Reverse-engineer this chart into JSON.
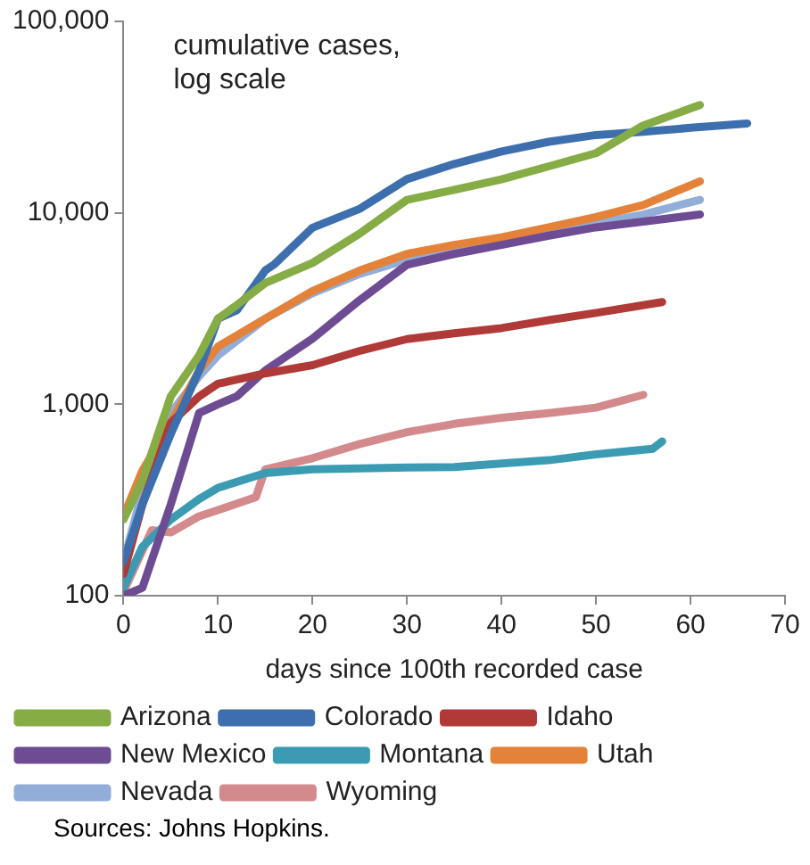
{
  "chart_data": {
    "type": "line",
    "title": "cumulative cases, log scale",
    "xlabel": "days since 100th recorded case",
    "log": "y",
    "grid": false,
    "legend": "bottom",
    "marker": "none",
    "line_style": "solid",
    "xlim": [
      0,
      70
    ],
    "xticks": [
      0,
      10,
      20,
      30,
      40,
      50,
      60,
      70
    ],
    "ylim": [
      100,
      100000
    ],
    "yticks": [
      {
        "value": 100,
        "label": "100"
      },
      {
        "value": 1000,
        "label": "1,000"
      },
      {
        "value": 10000,
        "label": "10,000"
      },
      {
        "value": 100000,
        "label": "100,000"
      }
    ],
    "annotations": [
      "Sources: Johns Hopkins."
    ],
    "series": [
      {
        "name": "Arizona",
        "color": "#86ac45",
        "x": [
          0,
          2,
          5,
          8,
          10,
          12,
          15,
          20,
          25,
          30,
          35,
          40,
          45,
          50,
          55,
          61
        ],
        "values": [
          250,
          400,
          1100,
          1800,
          2800,
          3300,
          4300,
          5470,
          7800,
          11700,
          13200,
          14960,
          17500,
          20500,
          28600,
          36600
        ]
      },
      {
        "name": "Colorado",
        "color": "#3d6fae",
        "x": [
          0,
          2,
          5,
          8,
          10,
          12,
          15,
          16,
          20,
          25,
          30,
          35,
          40,
          45,
          50,
          55,
          60,
          66
        ],
        "values": [
          150,
          300,
          700,
          1500,
          2800,
          3100,
          5000,
          5400,
          8360,
          10500,
          15000,
          18000,
          20900,
          23500,
          25500,
          26500,
          27800,
          29300
        ]
      },
      {
        "name": "Idaho",
        "color": "#b03a37",
        "x": [
          0,
          2,
          5,
          8,
          10,
          15,
          20,
          25,
          30,
          35,
          40,
          45,
          50,
          57
        ],
        "values": [
          130,
          300,
          800,
          1100,
          1280,
          1450,
          1600,
          1900,
          2190,
          2350,
          2500,
          2750,
          3000,
          3420
        ]
      },
      {
        "name": "New Mexico",
        "color": "#6e4c93",
        "x": [
          0,
          2,
          5,
          8,
          10,
          12,
          15,
          20,
          25,
          30,
          35,
          40,
          45,
          50,
          55,
          61
        ],
        "values": [
          100,
          110,
          300,
          900,
          1000,
          1100,
          1500,
          2200,
          3500,
          5350,
          6100,
          6800,
          7600,
          8400,
          9000,
          9800
        ]
      },
      {
        "name": "Montana",
        "color": "#3a9bb3",
        "x": [
          0,
          2,
          5,
          8,
          10,
          15,
          20,
          25,
          30,
          35,
          40,
          45,
          50,
          56,
          57
        ],
        "values": [
          110,
          180,
          250,
          320,
          366,
          437,
          457,
          462,
          467,
          470,
          490,
          510,
          547,
          585,
          640
        ]
      },
      {
        "name": "Utah",
        "color": "#e4823a",
        "x": [
          0,
          2,
          5,
          8,
          10,
          15,
          20,
          25,
          30,
          35,
          40,
          45,
          50,
          55,
          61
        ],
        "values": [
          260,
          450,
          800,
          1500,
          2000,
          2800,
          3900,
          5000,
          6100,
          6800,
          7450,
          8400,
          9500,
          11000,
          14600
        ]
      },
      {
        "name": "Nevada",
        "color": "#92add8",
        "x": [
          0,
          2,
          5,
          8,
          10,
          15,
          20,
          25,
          30,
          35,
          40,
          45,
          50,
          55,
          61
        ],
        "values": [
          150,
          350,
          900,
          1400,
          1800,
          2800,
          3800,
          4800,
          5700,
          6300,
          7000,
          7900,
          8800,
          9800,
          11700
        ]
      },
      {
        "name": "Wyoming",
        "color": "#d48a8c",
        "x": [
          0,
          3,
          5,
          8,
          10,
          14,
          15,
          20,
          25,
          30,
          35,
          40,
          45,
          50,
          55
        ],
        "values": [
          105,
          220,
          214,
          260,
          280,
          327,
          457,
          523,
          620,
          715,
          790,
          850,
          900,
          960,
          1120
        ]
      }
    ]
  }
}
